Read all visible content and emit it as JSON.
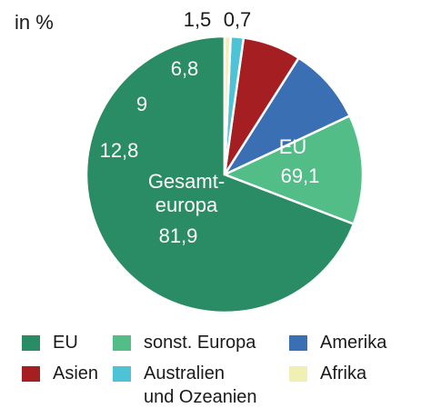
{
  "unit_label": "in %",
  "chart_data": {
    "type": "pie",
    "title": "",
    "start": "12 o'clock, clockwise",
    "slices": [
      {
        "key": "eu",
        "label": "EU",
        "value": 69.1,
        "value_label": "69,1",
        "color": "#2a8c64",
        "label_color": "#ffffff"
      },
      {
        "key": "europe",
        "label": "sonst. Europa",
        "value": 12.8,
        "value_label": "12,8",
        "color": "#52bd86",
        "label_color": "#ffffff"
      },
      {
        "key": "america",
        "label": "Amerika",
        "value": 9,
        "value_label": "9",
        "color": "#3a6fb4",
        "label_color": "#ffffff"
      },
      {
        "key": "asia",
        "label": "Asien",
        "value": 6.8,
        "value_label": "6,8",
        "color": "#a41e22",
        "label_color": "#ffffff"
      },
      {
        "key": "australia",
        "label": "Australien\nund Ozeanien",
        "value": 1.5,
        "value_label": "1,5",
        "color": "#4fc3d6",
        "label_color": "#1a1a1a"
      },
      {
        "key": "africa",
        "label": "Afrika",
        "value": 0.7,
        "value_label": "0,7",
        "color": "#f1f0b4",
        "label_color": "#1a1a1a"
      }
    ],
    "annotations": {
      "eu": {
        "name": "EU",
        "value": "69,1"
      },
      "gesamteuropa": {
        "name": "Gesamt-\neuropa",
        "value": "81,9"
      }
    }
  }
}
